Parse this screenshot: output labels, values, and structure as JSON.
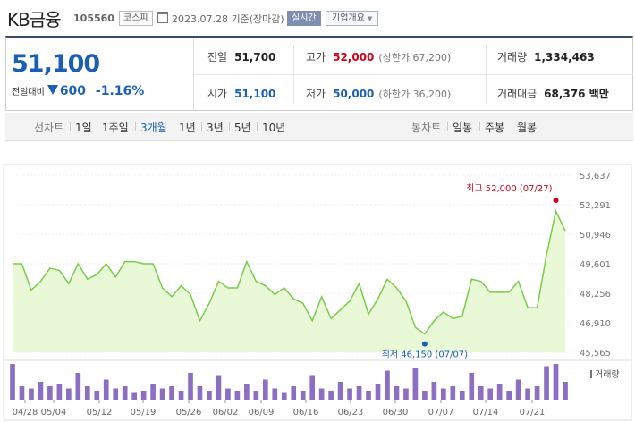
{
  "header": {
    "title": "KB금융",
    "code": "105560",
    "market": "코스피",
    "date": "2023.07.28  기준(장마감)",
    "realtime": "실시간",
    "company_info": "기업개요",
    "icons": [
      "calendar-icon",
      "chevron-down-icon"
    ]
  },
  "price": {
    "current": "51,100",
    "change_label": "전일대비",
    "change": "600",
    "change_pct": "-1.16%",
    "direction": "down",
    "color": "#1a5fb4"
  },
  "stats": {
    "prev_label": "전일",
    "prev_value": "51,700",
    "high_label": "고가",
    "high_value": "52,000",
    "upper_limit": "(상한가 67,200)",
    "volume_label": "거래량",
    "volume_value": "1,334,463",
    "open_label": "시가",
    "open_value": "51,100",
    "low_label": "저가",
    "low_value": "50,000",
    "lower_limit": "(하한가 36,200)",
    "amount_label": "거래대금",
    "amount_value": "68,376 백만"
  },
  "tabs": {
    "line_chart": "선차트",
    "periods": [
      "1일",
      "1주일",
      "3개월",
      "1년",
      "3년",
      "5년",
      "10년"
    ],
    "active_period": "3개월",
    "candle_chart": "봉차트",
    "candle_periods": [
      "일봉",
      "주봉",
      "월봉"
    ]
  },
  "chart_data": {
    "type": "area",
    "y_ticks": [
      "53,637",
      "52,291",
      "50,946",
      "49,601",
      "48,256",
      "46,910",
      "45,565"
    ],
    "ylim": [
      45565,
      53637
    ],
    "x_ticks": [
      "04/28",
      "05/04",
      "05/12",
      "05/19",
      "05/26",
      "06/02",
      "06/09",
      "06/16",
      "06/23",
      "06/30",
      "07/07",
      "07/14",
      "07/21"
    ],
    "values": [
      49600,
      49600,
      48400,
      48800,
      49400,
      49300,
      48700,
      49600,
      48900,
      49100,
      49600,
      49000,
      49700,
      49700,
      49600,
      49600,
      48500,
      48100,
      48600,
      48200,
      47000,
      47800,
      48800,
      48500,
      48500,
      49700,
      48800,
      48600,
      48200,
      48500,
      48000,
      47800,
      47000,
      48100,
      47100,
      47500,
      47900,
      48700,
      47300,
      48000,
      48900,
      48500,
      47900,
      46700,
      46400,
      47000,
      47400,
      47100,
      47200,
      48900,
      48800,
      48300,
      48300,
      48300,
      48800,
      47600,
      47600,
      50000,
      52000,
      51100
    ],
    "high_label": "최고 52,000 (07/27)",
    "low_label": "최저 46,150 (07/07)",
    "high_value": 52000,
    "low_value": 46150,
    "volume_label": "거래량",
    "volume": [
      80,
      30,
      25,
      40,
      30,
      35,
      25,
      60,
      30,
      20,
      45,
      25,
      30,
      15,
      20,
      35,
      25,
      30,
      20,
      60,
      30,
      20,
      55,
      25,
      20,
      35,
      20,
      45,
      25,
      15,
      30,
      20,
      55,
      25,
      20,
      40,
      25,
      30,
      20,
      35,
      65,
      30,
      25,
      70,
      20,
      40,
      25,
      30,
      20,
      60,
      30,
      25,
      35,
      20,
      45,
      25,
      30,
      75,
      80,
      40
    ],
    "line_color": "#78cc4b",
    "fill_color": "#e9f8d6",
    "volume_color": "#8c6fc2"
  }
}
